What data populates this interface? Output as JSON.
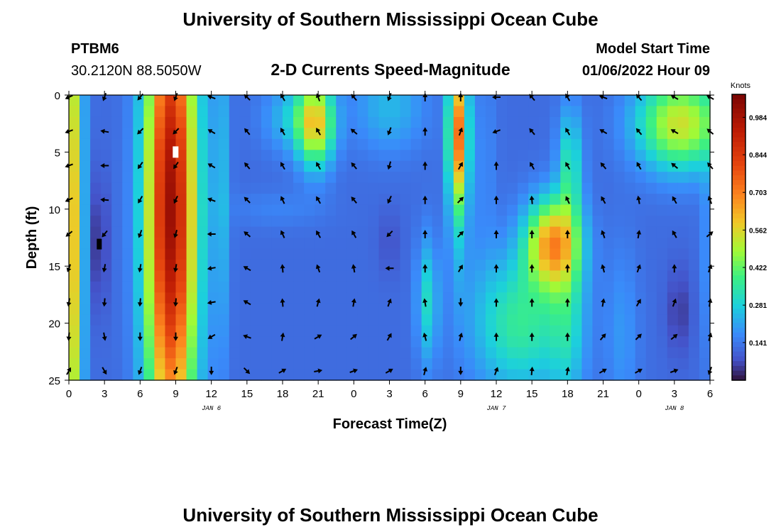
{
  "header": {
    "title": "University of Southern Mississippi Ocean Cube",
    "station": "PTBM6",
    "coords": "30.2120N  88.5050W",
    "plot_title": "2-D Currents Speed-Magnitude",
    "model_start_label": "Model Start Time",
    "model_start_value": "01/06/2022 Hour 09"
  },
  "footer": {
    "title": "University of Southern Mississippi Ocean Cube"
  },
  "chart_data": {
    "type": "heatmap",
    "title": "2-D Currents Speed-Magnitude",
    "xlabel": "Forecast Time(Z)",
    "ylabel": "Depth (ft)",
    "colorbar_label": "Knots",
    "colorbar_ticks": [
      "0.984",
      "0.844",
      "0.703",
      "0.562",
      "0.422",
      "0.281",
      "0.141"
    ],
    "colorbar_range": [
      0,
      1.07
    ],
    "x_range_hours": [
      0,
      54
    ],
    "y_range_ft": [
      0,
      25
    ],
    "x_ticks": [
      {
        "h": 0,
        "label": "0"
      },
      {
        "h": 3,
        "label": "3"
      },
      {
        "h": 6,
        "label": "6"
      },
      {
        "h": 9,
        "label": "9"
      },
      {
        "h": 12,
        "label": "12"
      },
      {
        "h": 15,
        "label": "15"
      },
      {
        "h": 18,
        "label": "18"
      },
      {
        "h": 21,
        "label": "21"
      },
      {
        "h": 24,
        "label": "0"
      },
      {
        "h": 27,
        "label": "3"
      },
      {
        "h": 30,
        "label": "6"
      },
      {
        "h": 33,
        "label": "9"
      },
      {
        "h": 36,
        "label": "12"
      },
      {
        "h": 39,
        "label": "15"
      },
      {
        "h": 42,
        "label": "18"
      },
      {
        "h": 45,
        "label": "21"
      },
      {
        "h": 48,
        "label": "0"
      },
      {
        "h": 51,
        "label": "3"
      },
      {
        "h": 54,
        "label": "6"
      }
    ],
    "y_ticks": [
      {
        "ft": 0,
        "label": "0"
      },
      {
        "ft": 5,
        "label": "5"
      },
      {
        "ft": 10,
        "label": "10"
      },
      {
        "ft": 15,
        "label": "15"
      },
      {
        "ft": 20,
        "label": "20"
      },
      {
        "ft": 25,
        "label": "25"
      }
    ],
    "date_labels": [
      {
        "h": 12,
        "label": "JAN 6"
      },
      {
        "h": 36,
        "label": "JAN 7"
      },
      {
        "h": 51,
        "label": "JAN 8"
      }
    ],
    "arrow_times_h": [
      0,
      3,
      6,
      9,
      12,
      15,
      18,
      21,
      24,
      27,
      30,
      33,
      36,
      39,
      42,
      45,
      48,
      51,
      54
    ],
    "arrow_depths_ft": [
      0,
      3,
      6,
      9,
      12,
      15,
      18,
      21,
      24
    ],
    "arrow_columns": [
      {
        "h": 0,
        "dirs": [
          245,
          250,
          250,
          245,
          230,
          200,
          190,
          185,
          30
        ]
      },
      {
        "h": 3,
        "dirs": [
          200,
          280,
          270,
          275,
          220,
          190,
          185,
          170,
          150
        ]
      },
      {
        "h": 6,
        "dirs": [
          220,
          225,
          215,
          210,
          200,
          190,
          185,
          180,
          200
        ]
      },
      {
        "h": 9,
        "dirs": [
          200,
          225,
          215,
          205,
          195,
          190,
          185,
          180,
          200
        ]
      },
      {
        "h": 12,
        "dirs": [
          290,
          300,
          300,
          290,
          270,
          260,
          260,
          240,
          180
        ]
      },
      {
        "h": 15,
        "dirs": [
          315,
          320,
          320,
          315,
          310,
          300,
          300,
          290,
          135
        ]
      },
      {
        "h": 18,
        "dirs": [
          330,
          330,
          330,
          335,
          335,
          355,
          355,
          10,
          60
        ]
      },
      {
        "h": 21,
        "dirs": [
          340,
          330,
          330,
          330,
          330,
          340,
          15,
          60,
          80
        ]
      },
      {
        "h": 24,
        "dirs": [
          320,
          310,
          320,
          320,
          330,
          350,
          10,
          50,
          70
        ]
      },
      {
        "h": 27,
        "dirs": [
          200,
          200,
          195,
          205,
          225,
          270,
          20,
          30,
          60
        ]
      },
      {
        "h": 30,
        "dirs": [
          0,
          0,
          0,
          0,
          0,
          0,
          350,
          345,
          15
        ]
      },
      {
        "h": 33,
        "dirs": [
          0,
          20,
          30,
          45,
          45,
          30,
          180,
          15,
          180
        ]
      },
      {
        "h": 36,
        "dirs": [
          270,
          250,
          0,
          0,
          0,
          0,
          0,
          0,
          20
        ]
      },
      {
        "h": 39,
        "dirs": [
          320,
          320,
          330,
          355,
          0,
          0,
          0,
          0,
          5
        ]
      },
      {
        "h": 42,
        "dirs": [
          330,
          330,
          330,
          335,
          0,
          0,
          0,
          0,
          10
        ]
      },
      {
        "h": 45,
        "dirs": [
          290,
          300,
          320,
          330,
          340,
          345,
          10,
          40,
          60
        ]
      },
      {
        "h": 48,
        "dirs": [
          320,
          320,
          330,
          350,
          10,
          20,
          30,
          45,
          60
        ]
      },
      {
        "h": 51,
        "dirs": [
          300,
          300,
          310,
          330,
          330,
          0,
          20,
          50,
          70
        ]
      },
      {
        "h": 54,
        "dirs": [
          300,
          310,
          320,
          340,
          50,
          20,
          10,
          15,
          200
        ]
      }
    ]
  }
}
